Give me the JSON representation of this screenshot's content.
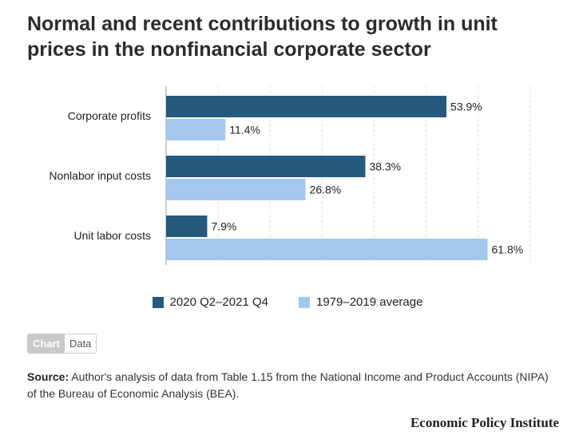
{
  "title": "Normal and recent contributions to growth in unit prices in the nonfinancial corporate sector",
  "chart_data": {
    "type": "bar",
    "orientation": "horizontal",
    "categories": [
      "Corporate profits",
      "Nonlabor input costs",
      "Unit labor costs"
    ],
    "series": [
      {
        "name": "2020 Q2–2021 Q4",
        "values": [
          53.9,
          38.3,
          7.9
        ],
        "color": "#245a7e"
      },
      {
        "name": "1979–2019 average",
        "values": [
          11.4,
          26.8,
          61.8
        ],
        "color": "#a4c8ec"
      }
    ],
    "value_labels": {
      "2020 Q2–2021 Q4": [
        "53.9%",
        "38.3%",
        "7.9%"
      ],
      "1979–2019 average": [
        "11.4%",
        "26.8%",
        "61.8%"
      ]
    },
    "xlim": [
      0,
      70
    ],
    "grid": true,
    "legend_position": "bottom"
  },
  "toggle": {
    "chart_label": "Chart",
    "data_label": "Data"
  },
  "source": {
    "label": "Source:",
    "text": "Author's analysis of data from Table 1.15 from the National Income and Product Accounts (NIPA) of the Bureau of Economic Analysis (BEA)."
  },
  "brand": "Economic Policy Institute"
}
